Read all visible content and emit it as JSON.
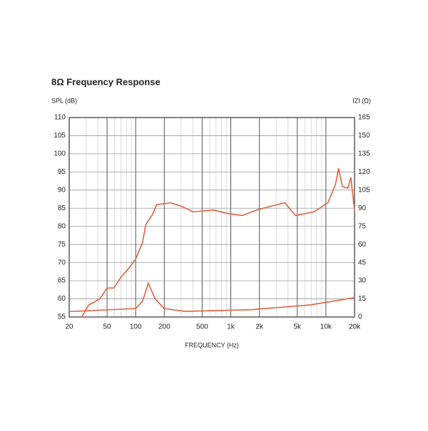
{
  "chart_data": {
    "type": "line",
    "title": "8Ω Frequency Response",
    "ylabel": "SPL (dB)",
    "y2label": "IZI (Ω)",
    "xlabel": "FREQUENCY (Hz)",
    "xscale": "log",
    "grid": true,
    "xlim": [
      20,
      20000
    ],
    "xticks": [
      20,
      50,
      100,
      200,
      500,
      {
        "value": 1000,
        "label": "1k"
      },
      {
        "value": 2000,
        "label": "2k"
      },
      {
        "value": 5000,
        "label": "5k"
      },
      {
        "value": 10000,
        "label": "10k"
      },
      {
        "value": 20000,
        "label": "20k"
      }
    ],
    "x_minor_grid": [
      30,
      40,
      60,
      70,
      80,
      90,
      300,
      400,
      600,
      700,
      800,
      900,
      3000,
      4000,
      6000,
      7000,
      8000,
      9000
    ],
    "ylim": [
      55,
      110
    ],
    "yticks": [
      55,
      60,
      65,
      70,
      75,
      80,
      85,
      90,
      95,
      100,
      105,
      110
    ],
    "y2lim": [
      0,
      165
    ],
    "y2ticks": [
      0,
      15,
      30,
      45,
      60,
      75,
      90,
      105,
      120,
      135,
      150,
      165
    ],
    "series": [
      {
        "name": "SPL",
        "color": "#e0603f",
        "x": [
          27,
          32,
          42,
          50,
          59,
          70,
          82,
          100,
          118,
          128,
          152,
          166,
          234,
          305,
          400,
          660,
          940,
          1330,
          1870,
          2600,
          3700,
          4800,
          7500,
          10500,
          12600,
          13600,
          14900,
          17000,
          18300,
          20000
        ],
        "values": [
          55,
          58.3,
          60,
          63,
          63,
          66,
          68,
          71,
          75.6,
          80.5,
          83.5,
          86,
          86.5,
          85.5,
          84,
          84.5,
          83.5,
          83,
          84.5,
          85.5,
          86.5,
          83,
          84,
          86.5,
          91.5,
          96,
          91,
          90.5,
          93.5,
          84.5
        ]
      },
      {
        "name": "Impedance",
        "color": "#e0603f",
        "axis": "y2",
        "x": [
          20,
          100,
          118,
          136,
          160,
          200,
          330,
          1600,
          6800,
          20000
        ],
        "values": [
          4.5,
          7,
          13,
          28,
          15,
          7,
          4.7,
          6,
          10,
          16
        ]
      }
    ]
  }
}
